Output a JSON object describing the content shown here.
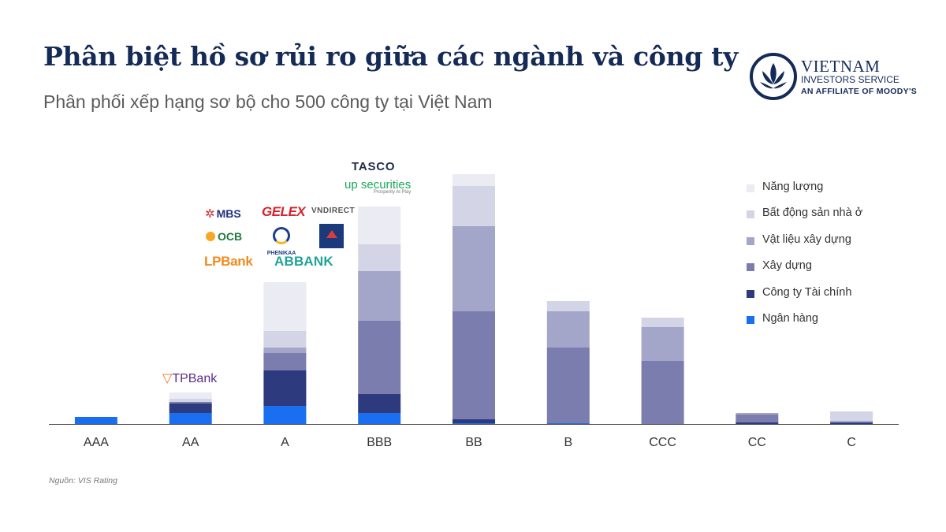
{
  "header": {
    "title": "Phân biệt hồ sơ rủi ro giữa các ngành và công ty",
    "subtitle": "Phân phối xếp hạng sơ bộ cho 500 công ty tại Việt Nam"
  },
  "brand": {
    "name": "VIETNAM",
    "line2": "INVESTORS SERVICE",
    "line3": "AN AFFILIATE OF MOODY'S"
  },
  "source": "Nguồn: VIS Rating",
  "logos": {
    "mbs": "MBS",
    "ocb": "OCB",
    "lpbank": "LPBank",
    "gelex": "GELEX",
    "phenikaa": "PHENIKAA",
    "abbank": "ABBANK",
    "vndirect": "VNDIRECT",
    "tasco": "TASCO",
    "up_securities": "up securities",
    "up_tagline": "Prosperity At Play",
    "tpbank": "TPBank"
  },
  "chart_data": {
    "type": "bar",
    "stacked": true,
    "categories": [
      "AAA",
      "AA",
      "A",
      "BBB",
      "BB",
      "B",
      "CCC",
      "CC",
      "C"
    ],
    "series": [
      {
        "name": "Ngân hàng",
        "color": "#1a6ff0",
        "values": [
          9,
          14,
          23,
          14,
          1,
          1,
          0,
          0,
          0
        ]
      },
      {
        "name": "Công ty Tài chính",
        "color": "#2e3a7e",
        "values": [
          0,
          12,
          45,
          24,
          5,
          0,
          0,
          2,
          2
        ]
      },
      {
        "name": "Xây dựng",
        "color": "#7b7dae",
        "values": [
          0,
          2,
          22,
          93,
          137,
          96,
          80,
          10,
          0
        ]
      },
      {
        "name": "Vật liệu xây dựng",
        "color": "#a4a6c9",
        "values": [
          0,
          0,
          7,
          63,
          108,
          46,
          43,
          2,
          2
        ]
      },
      {
        "name": "Bất động sản nhà ở",
        "color": "#d3d4e6",
        "values": [
          0,
          4,
          21,
          34,
          51,
          13,
          12,
          0,
          12
        ]
      },
      {
        "name": "Năng lượng",
        "color": "#eaebf3",
        "values": [
          0,
          8,
          62,
          48,
          15,
          0,
          0,
          0,
          0
        ]
      }
    ],
    "ylim": [
      0,
      320
    ],
    "grid": false,
    "legend": "right"
  }
}
